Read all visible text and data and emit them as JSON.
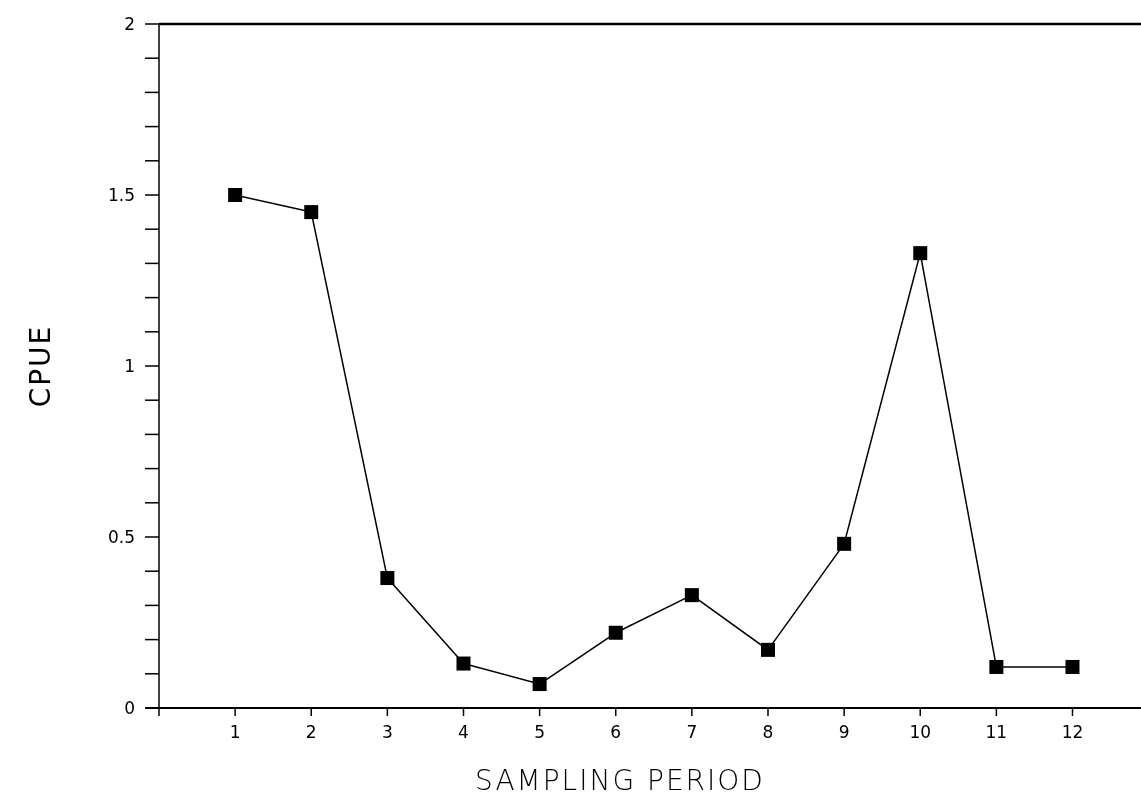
{
  "chart_data": {
    "type": "line",
    "xlabel": "SAMPLING PERIOD",
    "ylabel": "CPUE",
    "x": [
      1,
      2,
      3,
      4,
      5,
      6,
      7,
      8,
      9,
      10,
      11,
      12
    ],
    "series": [
      {
        "color": "#000000",
        "values": [
          1.5,
          1.45,
          0.38,
          0.13,
          0.07,
          0.22,
          0.33,
          0.17,
          0.48,
          1.33,
          0.12,
          0.12
        ]
      }
    ],
    "xlim": [
      0,
      12.9
    ],
    "xticks": [
      1,
      2,
      3,
      4,
      5,
      6,
      7,
      8,
      9,
      10,
      11,
      12
    ],
    "ylim": [
      0,
      2
    ],
    "yticks": [
      0,
      {
        "value": 0.1,
        "label": null
      },
      {
        "value": 0.2,
        "label": null
      },
      {
        "value": 0.3,
        "label": null
      },
      {
        "value": 0.4,
        "label": null
      },
      0.5,
      {
        "value": 0.6,
        "label": null
      },
      {
        "value": 0.7,
        "label": null
      },
      {
        "value": 0.8,
        "label": null
      },
      {
        "value": 0.9,
        "label": null
      },
      1,
      {
        "value": 1.1,
        "label": null
      },
      {
        "value": 1.2,
        "label": null
      },
      {
        "value": 1.3,
        "label": null
      },
      {
        "value": 1.4,
        "label": null
      },
      1.5,
      {
        "value": 1.6,
        "label": null
      },
      {
        "value": 1.7,
        "label": null
      },
      {
        "value": 1.8,
        "label": null
      },
      {
        "value": 1.9,
        "label": null
      },
      2
    ],
    "marker": "square",
    "line_style": "solid",
    "grid": false
  }
}
